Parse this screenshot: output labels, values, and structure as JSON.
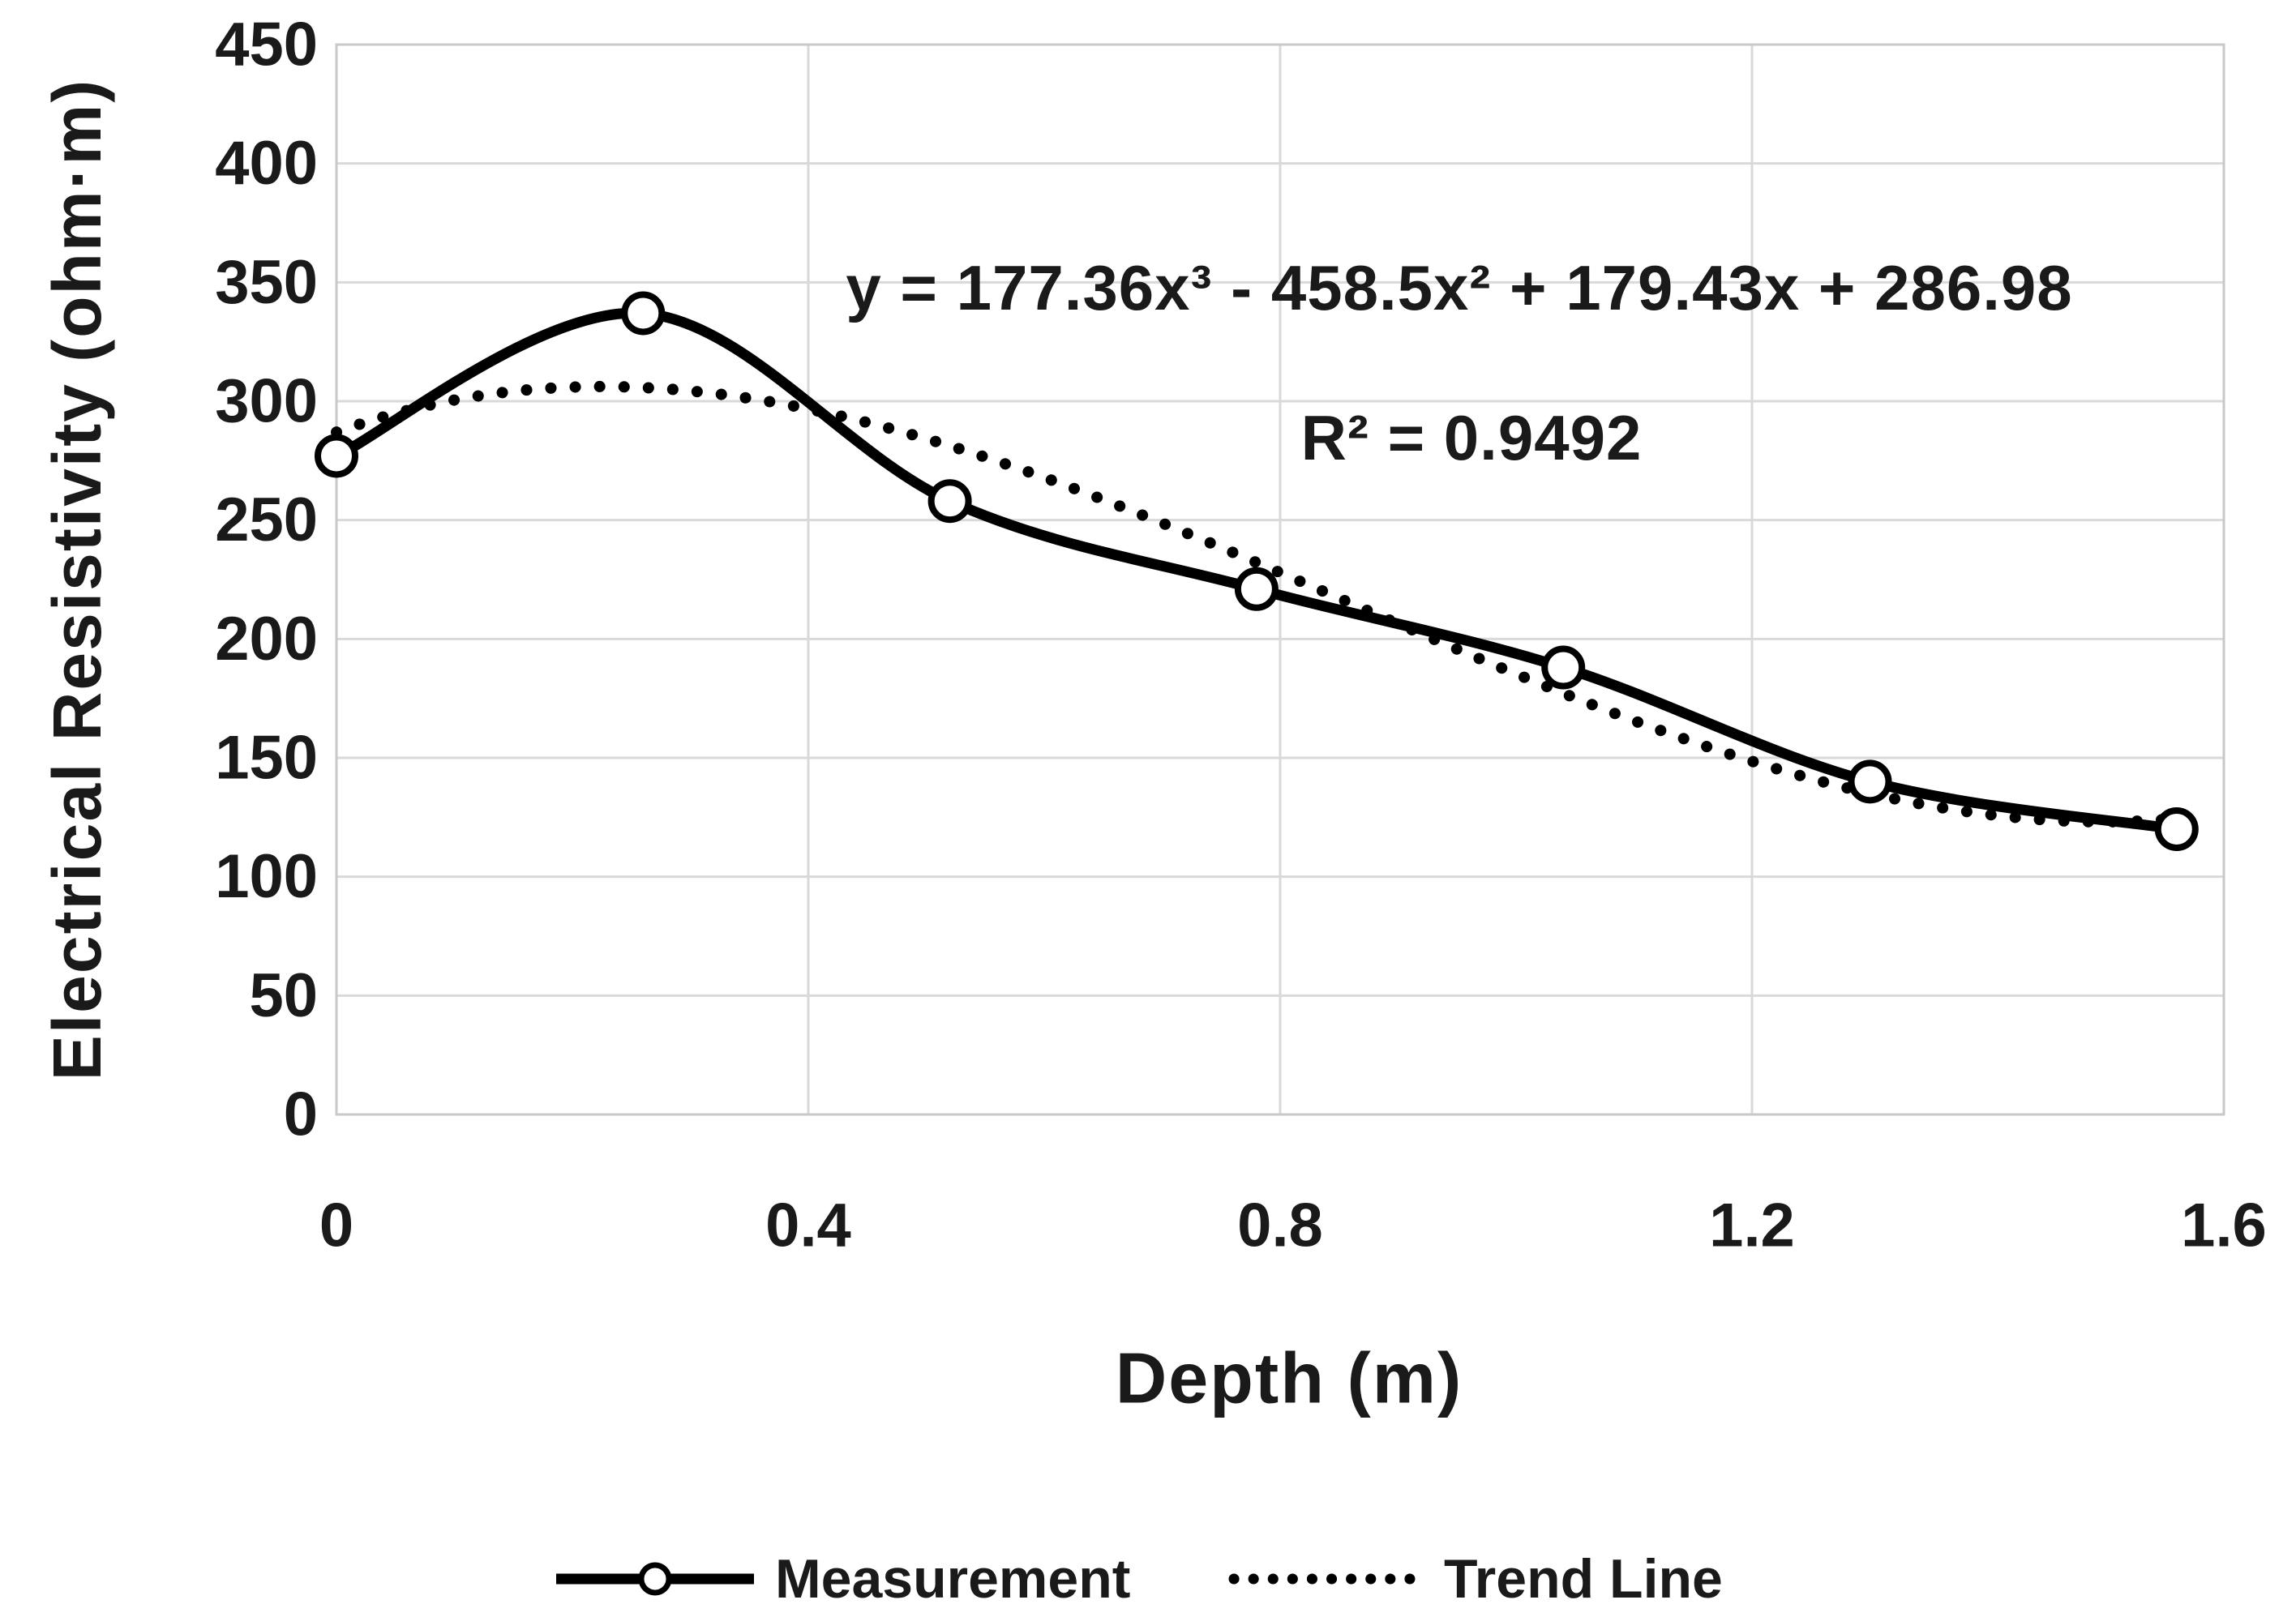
{
  "chart_data": {
    "type": "line",
    "title": "",
    "xlabel": "Depth  (m)",
    "ylabel": "Electrical Resistivity (ohm·m)",
    "xlim": [
      0,
      1.6
    ],
    "ylim": [
      0,
      450
    ],
    "x_tick_labels": [
      "0",
      "0.4",
      "0.8",
      "1.2",
      "1.6"
    ],
    "x_tick_values": [
      0,
      0.4,
      0.8,
      1.2,
      1.6
    ],
    "y_tick_labels": [
      "0",
      "50",
      "100",
      "150",
      "200",
      "250",
      "300",
      "350",
      "400",
      "450"
    ],
    "y_tick_values": [
      0,
      50,
      100,
      150,
      200,
      250,
      300,
      350,
      400,
      450
    ],
    "grid": true,
    "annotation": {
      "equation": "y = 177.36x³ - 458.5x² + 179.43x + 286.98",
      "r_squared": "R² = 0.9492"
    },
    "series": [
      {
        "name": "Measurement",
        "style": "solid-smooth-line",
        "marker": "open-circle",
        "x": [
          0,
          0.26,
          0.52,
          0.78,
          1.04,
          1.3,
          1.56
        ],
        "y": [
          277,
          337,
          258,
          221,
          188,
          140,
          120
        ]
      },
      {
        "name": "Trend Line",
        "style": "dotted-line",
        "marker": "none",
        "poly_coefficients": [
          177.36,
          -458.5,
          179.43,
          286.98
        ],
        "x_range": [
          0,
          1.56
        ]
      }
    ],
    "legend": {
      "position": "bottom-center",
      "entries": [
        "Measurement",
        "Trend Line"
      ]
    }
  },
  "colors": {
    "series": "#000000",
    "grid": "#d9d9d9",
    "plot_border": "#c8c8c8",
    "text": "#1a1a1a",
    "background": "#ffffff"
  }
}
